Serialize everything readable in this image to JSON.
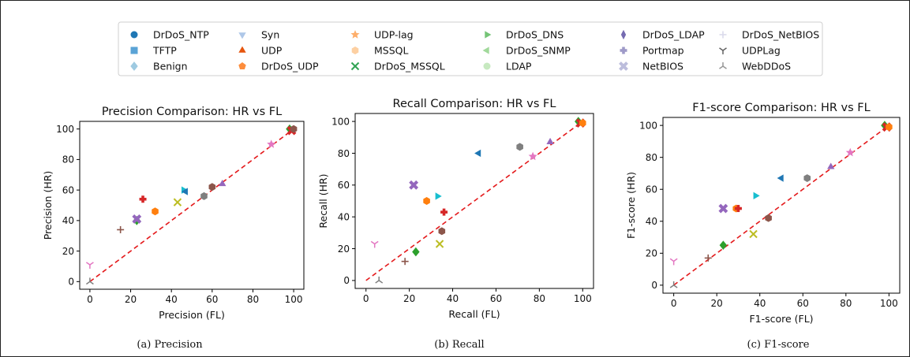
{
  "legend": [
    {
      "name": "DrDoS_NTP",
      "color": "#1f77b4",
      "marker": "circle"
    },
    {
      "name": "TFTP",
      "color": "#5aa3d6",
      "marker": "square"
    },
    {
      "name": "Benign",
      "color": "#9ecae1",
      "marker": "diamond"
    },
    {
      "name": "Syn",
      "color": "#aec7e8",
      "marker": "tri-down"
    },
    {
      "name": "UDP",
      "color": "#e6550d",
      "marker": "tri-up"
    },
    {
      "name": "DrDoS_UDP",
      "color": "#fd8d3c",
      "marker": "pentagon"
    },
    {
      "name": "UDP-lag",
      "color": "#fdae6b",
      "marker": "star"
    },
    {
      "name": "MSSQL",
      "color": "#fdd0a2",
      "marker": "hexagon"
    },
    {
      "name": "DrDoS_MSSQL",
      "color": "#31a354",
      "marker": "x"
    },
    {
      "name": "DrDoS_DNS",
      "color": "#74c476",
      "marker": "tri-right"
    },
    {
      "name": "DrDoS_SNMP",
      "color": "#a1d99b",
      "marker": "tri-left"
    },
    {
      "name": "LDAP",
      "color": "#c7e9c0",
      "marker": "circle"
    },
    {
      "name": "DrDoS_LDAP",
      "color": "#756bb1",
      "marker": "thin-diamond"
    },
    {
      "name": "Portmap",
      "color": "#9e9ac8",
      "marker": "plus-filled"
    },
    {
      "name": "NetBIOS",
      "color": "#bcbddc",
      "marker": "x-filled"
    },
    {
      "name": "DrDoS_NetBIOS",
      "color": "#dadaeb",
      "marker": "plus"
    },
    {
      "name": "UDPLag",
      "color": "#636363",
      "marker": "tri-down-line"
    },
    {
      "name": "WebDDoS",
      "color": "#969696",
      "marker": "tri-up-line"
    }
  ],
  "chart_data": [
    {
      "type": "scatter",
      "title": "Precision Comparison: HR vs FL",
      "xlabel": "Precision (FL)",
      "ylabel": "Precision (HR)",
      "xlim": [
        -5,
        105
      ],
      "ylim": [
        -5,
        105
      ],
      "xticks": [
        0,
        20,
        40,
        60,
        80,
        100
      ],
      "yticks": [
        0,
        20,
        40,
        60,
        80,
        100
      ],
      "caption": "(a) Precision",
      "reference_line": {
        "from": [
          0,
          0
        ],
        "to": [
          100,
          100
        ],
        "color": "#e41a1c",
        "style": "dashed"
      },
      "points": [
        {
          "x": 0,
          "y": 0,
          "color": "#7f7f7f",
          "marker": "tri-up-line"
        },
        {
          "x": 0,
          "y": 11,
          "color": "#e377c2",
          "marker": "tri-down-line"
        },
        {
          "x": 15,
          "y": 34,
          "color": "#8c564b",
          "marker": "plus"
        },
        {
          "x": 23,
          "y": 40,
          "color": "#2ca02c",
          "marker": "diamond"
        },
        {
          "x": 23,
          "y": 41,
          "color": "#9467bd",
          "marker": "x-filled"
        },
        {
          "x": 26,
          "y": 54,
          "color": "#d62728",
          "marker": "plus-filled"
        },
        {
          "x": 32,
          "y": 46,
          "color": "#ff7f0e",
          "marker": "hexagon"
        },
        {
          "x": 43,
          "y": 52,
          "color": "#bcbd22",
          "marker": "x"
        },
        {
          "x": 46,
          "y": 60,
          "color": "#17becf",
          "marker": "tri-right"
        },
        {
          "x": 47,
          "y": 59,
          "color": "#1f77b4",
          "marker": "tri-left"
        },
        {
          "x": 56,
          "y": 56,
          "color": "#7f7f7f",
          "marker": "hexagon"
        },
        {
          "x": 60,
          "y": 62,
          "color": "#8c564b",
          "marker": "hexagon"
        },
        {
          "x": 65,
          "y": 64,
          "color": "#9467bd",
          "marker": "tri-up"
        },
        {
          "x": 89,
          "y": 90,
          "color": "#e377c2",
          "marker": "star"
        },
        {
          "x": 98,
          "y": 100,
          "color": "#2ca02c",
          "marker": "diamond"
        },
        {
          "x": 99,
          "y": 99,
          "color": "#d62728",
          "marker": "x-filled"
        },
        {
          "x": 100,
          "y": 100,
          "color": "#8c564b",
          "marker": "hexagon"
        }
      ]
    },
    {
      "type": "scatter",
      "title": "Recall Comparison: HR vs FL",
      "xlabel": "Recall (FL)",
      "ylabel": "Recall (HR)",
      "xlim": [
        -5,
        105
      ],
      "ylim": [
        -5,
        105
      ],
      "xticks": [
        0,
        20,
        40,
        60,
        80,
        100
      ],
      "yticks": [
        0,
        20,
        40,
        60,
        80,
        100
      ],
      "caption": "(b) Recall",
      "reference_line": {
        "from": [
          0,
          0
        ],
        "to": [
          100,
          100
        ],
        "color": "#e41a1c",
        "style": "dashed"
      },
      "points": [
        {
          "x": 4,
          "y": 23,
          "color": "#e377c2",
          "marker": "tri-down-line"
        },
        {
          "x": 6,
          "y": 0,
          "color": "#7f7f7f",
          "marker": "tri-up-line"
        },
        {
          "x": 18,
          "y": 12,
          "color": "#8c564b",
          "marker": "plus"
        },
        {
          "x": 22,
          "y": 60,
          "color": "#9467bd",
          "marker": "x-filled"
        },
        {
          "x": 23,
          "y": 18,
          "color": "#2ca02c",
          "marker": "diamond"
        },
        {
          "x": 28,
          "y": 50,
          "color": "#ff7f0e",
          "marker": "hexagon"
        },
        {
          "x": 33,
          "y": 53,
          "color": "#17becf",
          "marker": "tri-right"
        },
        {
          "x": 34,
          "y": 23,
          "color": "#bcbd22",
          "marker": "x"
        },
        {
          "x": 35,
          "y": 31,
          "color": "#8c564b",
          "marker": "hexagon"
        },
        {
          "x": 36,
          "y": 43,
          "color": "#d62728",
          "marker": "plus-filled"
        },
        {
          "x": 52,
          "y": 80,
          "color": "#1f77b4",
          "marker": "tri-left"
        },
        {
          "x": 71,
          "y": 84,
          "color": "#7f7f7f",
          "marker": "hexagon"
        },
        {
          "x": 77,
          "y": 78,
          "color": "#e377c2",
          "marker": "star"
        },
        {
          "x": 85,
          "y": 87,
          "color": "#9467bd",
          "marker": "tri-up"
        },
        {
          "x": 98,
          "y": 100,
          "color": "#2ca02c",
          "marker": "diamond"
        },
        {
          "x": 99,
          "y": 99,
          "color": "#d62728",
          "marker": "x-filled"
        },
        {
          "x": 100,
          "y": 99,
          "color": "#ff7f0e",
          "marker": "hexagon"
        }
      ]
    },
    {
      "type": "scatter",
      "title": "F1-score Comparison: HR vs FL",
      "xlabel": "F1-score (FL)",
      "ylabel": "F1-score (HR)",
      "xlim": [
        -5,
        105
      ],
      "ylim": [
        -5,
        105
      ],
      "xticks": [
        0,
        20,
        40,
        60,
        80,
        100
      ],
      "yticks": [
        0,
        20,
        40,
        60,
        80,
        100
      ],
      "caption": "(c) F1-score",
      "reference_line": {
        "from": [
          0,
          0
        ],
        "to": [
          100,
          100
        ],
        "color": "#e41a1c",
        "style": "dashed"
      },
      "points": [
        {
          "x": 0,
          "y": 0,
          "color": "#7f7f7f",
          "marker": "tri-up-line"
        },
        {
          "x": 0,
          "y": 15,
          "color": "#e377c2",
          "marker": "tri-down-line"
        },
        {
          "x": 16,
          "y": 17,
          "color": "#8c564b",
          "marker": "plus"
        },
        {
          "x": 23,
          "y": 25,
          "color": "#2ca02c",
          "marker": "diamond"
        },
        {
          "x": 23,
          "y": 48,
          "color": "#9467bd",
          "marker": "x-filled"
        },
        {
          "x": 29,
          "y": 48,
          "color": "#ff7f0e",
          "marker": "hexagon"
        },
        {
          "x": 30,
          "y": 48,
          "color": "#d62728",
          "marker": "plus-filled"
        },
        {
          "x": 37,
          "y": 32,
          "color": "#bcbd22",
          "marker": "x"
        },
        {
          "x": 38,
          "y": 56,
          "color": "#17becf",
          "marker": "tri-right"
        },
        {
          "x": 44,
          "y": 42,
          "color": "#8c564b",
          "marker": "hexagon"
        },
        {
          "x": 50,
          "y": 67,
          "color": "#1f77b4",
          "marker": "tri-left"
        },
        {
          "x": 62,
          "y": 67,
          "color": "#7f7f7f",
          "marker": "hexagon"
        },
        {
          "x": 73,
          "y": 74,
          "color": "#9467bd",
          "marker": "tri-up"
        },
        {
          "x": 82,
          "y": 83,
          "color": "#e377c2",
          "marker": "star"
        },
        {
          "x": 98,
          "y": 100,
          "color": "#2ca02c",
          "marker": "diamond"
        },
        {
          "x": 99,
          "y": 99,
          "color": "#d62728",
          "marker": "x-filled"
        },
        {
          "x": 100,
          "y": 99,
          "color": "#ff7f0e",
          "marker": "hexagon"
        }
      ]
    }
  ]
}
